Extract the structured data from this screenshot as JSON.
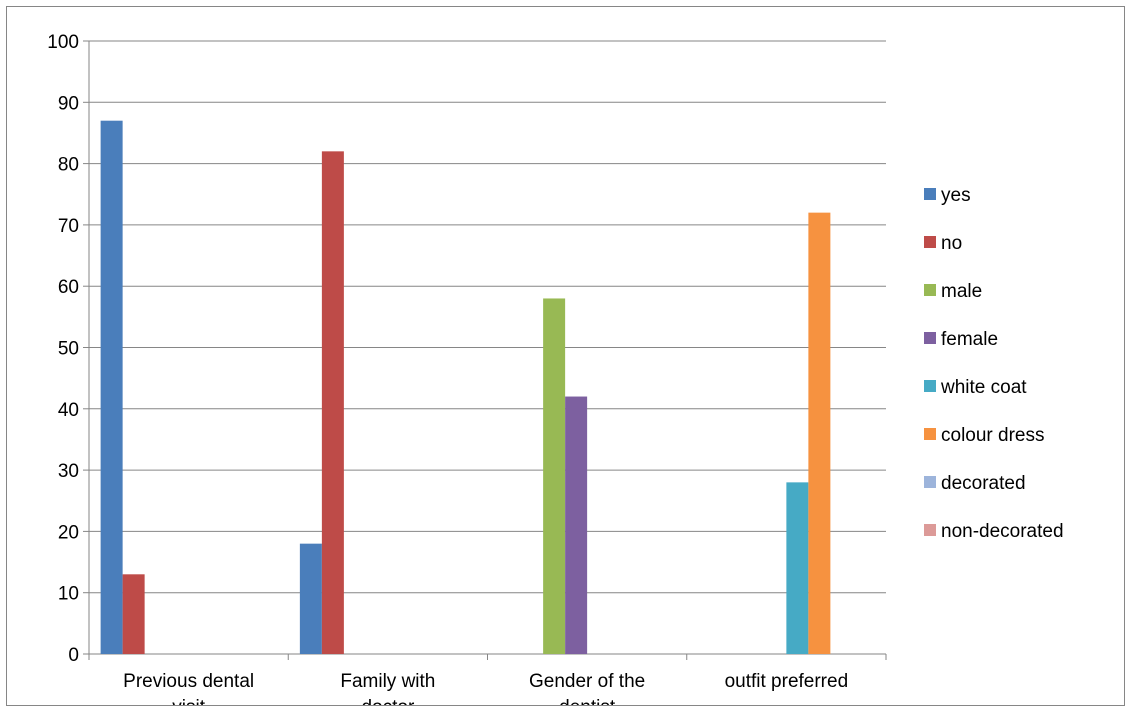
{
  "chart_data": {
    "type": "bar",
    "title": "",
    "xlabel": "",
    "ylabel": "",
    "ylim": [
      0,
      100
    ],
    "ytick_step": 10,
    "grid": true,
    "legend_position": "right",
    "categories": [
      [
        "Previous dental",
        "visit"
      ],
      [
        "Family with",
        "doctor"
      ],
      [
        "Gender of the",
        "dentist"
      ],
      [
        "outfit preferred"
      ]
    ],
    "series": [
      {
        "name": "yes",
        "color": "#4A7EBB",
        "values": [
          87,
          18,
          0,
          0
        ]
      },
      {
        "name": "no",
        "color": "#BE4B48",
        "values": [
          13,
          82,
          0,
          0
        ]
      },
      {
        "name": "male",
        "color": "#98B954",
        "values": [
          0,
          0,
          58,
          0
        ]
      },
      {
        "name": "female",
        "color": "#7D60A0",
        "values": [
          0,
          0,
          42,
          0
        ]
      },
      {
        "name": "white coat",
        "color": "#46AAC5",
        "values": [
          0,
          0,
          0,
          28
        ]
      },
      {
        "name": "colour dress",
        "color": "#F69240",
        "values": [
          0,
          0,
          0,
          72
        ]
      },
      {
        "name": "decorated",
        "color": "#9DB4DB",
        "values": [
          0,
          0,
          0,
          0
        ]
      },
      {
        "name": "non-decorated",
        "color": "#DC9A98",
        "values": [
          0,
          0,
          0,
          0
        ]
      }
    ]
  }
}
